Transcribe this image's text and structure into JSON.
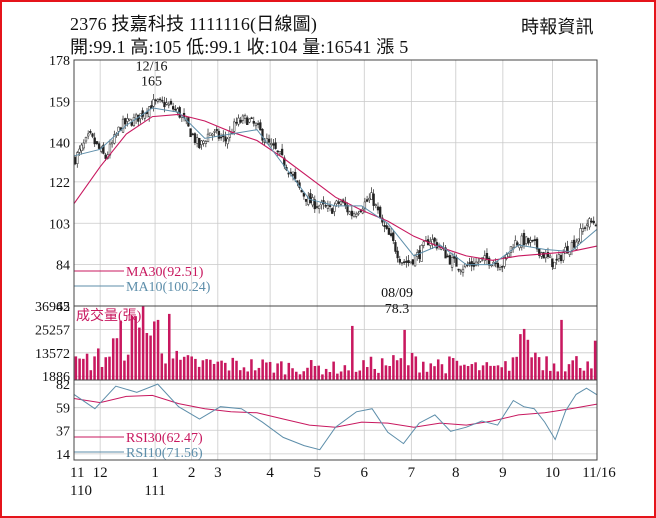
{
  "header": {
    "title": "2376  技嘉科技 1111116(日線圖)",
    "ohlc": "開:99.1 高:105 低:99.1 收:104 量:16541 漲 5",
    "source": "時報資訊"
  },
  "colors": {
    "candle": "#222222",
    "volume": "#c8185f",
    "ma30": "#c8185f",
    "ma10": "#5d8eaa",
    "rsi30": "#c8185f",
    "rsi10": "#5d8eaa",
    "grid": "#c9c9c9",
    "frame": "#e5141b"
  },
  "chart_data": [
    {
      "type": "candlestick",
      "panel": "price",
      "y_ticks": [
        "178",
        "159",
        "140",
        "122",
        "103",
        "84",
        "65"
      ],
      "ylim": [
        65,
        178
      ],
      "annotations": [
        {
          "label_date": "12/16",
          "label_value": "165",
          "x": 0.175,
          "y": 165
        },
        {
          "label_date": "08/09",
          "label_value": "78.3",
          "x": 0.633,
          "y": 78.3
        }
      ],
      "legend": [
        {
          "label": "MA30(92.51)",
          "color_key": "ma30"
        },
        {
          "label": "MA10(100.24)",
          "color_key": "ma10"
        }
      ],
      "close_path": [
        [
          0,
          132
        ],
        [
          0.03,
          143
        ],
        [
          0.06,
          133
        ],
        [
          0.09,
          148
        ],
        [
          0.12,
          151
        ],
        [
          0.15,
          158
        ],
        [
          0.175,
          158
        ],
        [
          0.2,
          154
        ],
        [
          0.22,
          146
        ],
        [
          0.24,
          138
        ],
        [
          0.26,
          145
        ],
        [
          0.29,
          141
        ],
        [
          0.31,
          149
        ],
        [
          0.33,
          151
        ],
        [
          0.35,
          147
        ],
        [
          0.37,
          140
        ],
        [
          0.39,
          135
        ],
        [
          0.41,
          128
        ],
        [
          0.43,
          119
        ],
        [
          0.45,
          113
        ],
        [
          0.47,
          111
        ],
        [
          0.49,
          109
        ],
        [
          0.51,
          113
        ],
        [
          0.53,
          107
        ],
        [
          0.55,
          111
        ],
        [
          0.57,
          115
        ],
        [
          0.59,
          102
        ],
        [
          0.61,
          94
        ],
        [
          0.625,
          86
        ],
        [
          0.64,
          85
        ],
        [
          0.66,
          89
        ],
        [
          0.68,
          96
        ],
        [
          0.7,
          92
        ],
        [
          0.72,
          86
        ],
        [
          0.74,
          83
        ],
        [
          0.76,
          84
        ],
        [
          0.78,
          86
        ],
        [
          0.8,
          86
        ],
        [
          0.82,
          84
        ],
        [
          0.84,
          94
        ],
        [
          0.86,
          95
        ],
        [
          0.88,
          93
        ],
        [
          0.9,
          88
        ],
        [
          0.92,
          84
        ],
        [
          0.94,
          91
        ],
        [
          0.96,
          95
        ],
        [
          0.98,
          103
        ],
        [
          1,
          104
        ]
      ],
      "ma30_path": [
        [
          0,
          112
        ],
        [
          0.05,
          129
        ],
        [
          0.1,
          144
        ],
        [
          0.15,
          152
        ],
        [
          0.2,
          153
        ],
        [
          0.25,
          150
        ],
        [
          0.3,
          145
        ],
        [
          0.35,
          141
        ],
        [
          0.4,
          133
        ],
        [
          0.45,
          124
        ],
        [
          0.5,
          115
        ],
        [
          0.55,
          109
        ],
        [
          0.6,
          104
        ],
        [
          0.65,
          97
        ],
        [
          0.7,
          92
        ],
        [
          0.75,
          88
        ],
        [
          0.8,
          86
        ],
        [
          0.85,
          88
        ],
        [
          0.9,
          89
        ],
        [
          0.95,
          90
        ],
        [
          1,
          92.5
        ]
      ],
      "ma10_path": [
        [
          0,
          134
        ],
        [
          0.05,
          137
        ],
        [
          0.1,
          148
        ],
        [
          0.15,
          156
        ],
        [
          0.2,
          154
        ],
        [
          0.25,
          142
        ],
        [
          0.3,
          144
        ],
        [
          0.35,
          146
        ],
        [
          0.4,
          130
        ],
        [
          0.45,
          114
        ],
        [
          0.5,
          111
        ],
        [
          0.55,
          111
        ],
        [
          0.6,
          103
        ],
        [
          0.65,
          88
        ],
        [
          0.7,
          93
        ],
        [
          0.75,
          84
        ],
        [
          0.8,
          84
        ],
        [
          0.85,
          93
        ],
        [
          0.9,
          91
        ],
        [
          0.95,
          90
        ],
        [
          1,
          100.24
        ]
      ]
    },
    {
      "type": "bar",
      "panel": "volume",
      "title": "成交量(張)",
      "y_ticks": [
        "36942",
        "25257",
        "13572",
        "1886"
      ],
      "ylim": [
        0,
        36942
      ],
      "value_profile": [
        [
          0,
          9000
        ],
        [
          0.06,
          14000
        ],
        [
          0.1,
          26000
        ],
        [
          0.15,
          28000
        ],
        [
          0.2,
          10000
        ],
        [
          0.3,
          9000
        ],
        [
          0.4,
          8000
        ],
        [
          0.5,
          7000
        ],
        [
          0.58,
          9000
        ],
        [
          0.65,
          11000
        ],
        [
          0.75,
          8000
        ],
        [
          0.82,
          6000
        ],
        [
          0.86,
          20000
        ],
        [
          0.9,
          12000
        ],
        [
          0.94,
          8000
        ],
        [
          0.98,
          12000
        ],
        [
          1,
          16541
        ]
      ],
      "highlights": [
        {
          "x": 0.125,
          "value": 36942
        },
        {
          "x": 0.155,
          "value": 30000
        },
        {
          "x": 0.175,
          "value": 33000
        },
        {
          "x": 0.53,
          "value": 27000
        },
        {
          "x": 0.628,
          "value": 25000
        },
        {
          "x": 0.855,
          "value": 25500
        },
        {
          "x": 0.925,
          "value": 30000
        }
      ]
    },
    {
      "type": "line",
      "panel": "rsi",
      "y_ticks": [
        "82",
        "59",
        "37",
        "14"
      ],
      "ylim": [
        8,
        86
      ],
      "legend": [
        {
          "label": "RSI30(62.47)",
          "color_key": "rsi30"
        },
        {
          "label": "RSI10(71.56)",
          "color_key": "rsi10"
        }
      ],
      "series": [
        {
          "name": "RSI30(62.47)",
          "values": [
            [
              0,
              68
            ],
            [
              0.05,
              64
            ],
            [
              0.1,
              70
            ],
            [
              0.15,
              71
            ],
            [
              0.2,
              63
            ],
            [
              0.25,
              58
            ],
            [
              0.3,
              55
            ],
            [
              0.35,
              54
            ],
            [
              0.4,
              48
            ],
            [
              0.45,
              42
            ],
            [
              0.5,
              40
            ],
            [
              0.55,
              45
            ],
            [
              0.6,
              44
            ],
            [
              0.65,
              40
            ],
            [
              0.7,
              44
            ],
            [
              0.75,
              42
            ],
            [
              0.8,
              46
            ],
            [
              0.85,
              52
            ],
            [
              0.9,
              54
            ],
            [
              0.95,
              58
            ],
            [
              1,
              62.47
            ]
          ]
        },
        {
          "name": "RSI10(71.56)",
          "values": [
            [
              0,
              72
            ],
            [
              0.04,
              58
            ],
            [
              0.08,
              80
            ],
            [
              0.12,
              74
            ],
            [
              0.16,
              82
            ],
            [
              0.2,
              60
            ],
            [
              0.24,
              48
            ],
            [
              0.28,
              60
            ],
            [
              0.32,
              58
            ],
            [
              0.36,
              45
            ],
            [
              0.4,
              30
            ],
            [
              0.44,
              22
            ],
            [
              0.47,
              18
            ],
            [
              0.5,
              40
            ],
            [
              0.54,
              55
            ],
            [
              0.57,
              58
            ],
            [
              0.6,
              35
            ],
            [
              0.63,
              24
            ],
            [
              0.66,
              44
            ],
            [
              0.69,
              52
            ],
            [
              0.72,
              36
            ],
            [
              0.75,
              40
            ],
            [
              0.78,
              46
            ],
            [
              0.81,
              42
            ],
            [
              0.84,
              66
            ],
            [
              0.86,
              60
            ],
            [
              0.88,
              58
            ],
            [
              0.9,
              45
            ],
            [
              0.92,
              28
            ],
            [
              0.94,
              56
            ],
            [
              0.96,
              72
            ],
            [
              0.98,
              78
            ],
            [
              1,
              71.56
            ]
          ]
        }
      ]
    }
  ],
  "x_axis": {
    "labels": [
      "11",
      "12",
      "1",
      "2",
      "3",
      "4",
      "5",
      "6",
      "7",
      "8",
      "9",
      "10",
      "11/16"
    ],
    "label_positions": [
      0.0,
      0.05,
      0.155,
      0.225,
      0.275,
      0.375,
      0.465,
      0.555,
      0.645,
      0.73,
      0.82,
      0.915,
      1.0
    ],
    "year_labels": [
      {
        "text": "110",
        "pos": 0.0
      },
      {
        "text": "111",
        "pos": 0.155
      }
    ]
  }
}
